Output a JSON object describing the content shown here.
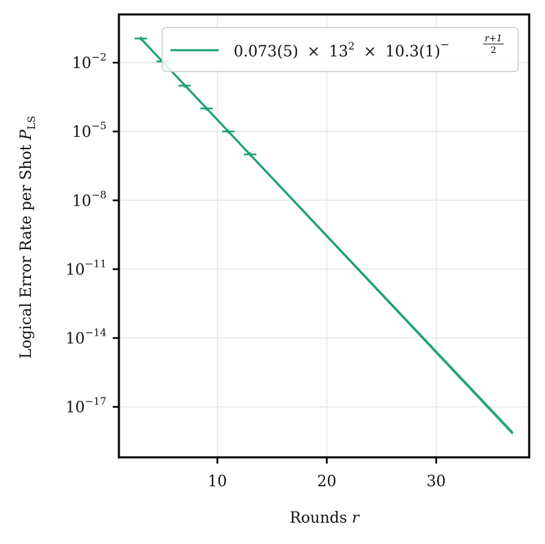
{
  "chart_data": {
    "type": "line",
    "xlabel": "Rounds",
    "xlabel_var": "r",
    "ylabel": "Logical Error Rate per Shot",
    "ylabel_var": "P",
    "ylabel_sub": "LS",
    "xlim": [
      1,
      38.5
    ],
    "ylim_log10": [
      -19.2,
      0.1
    ],
    "y_scale": "log",
    "x_ticks": [
      10,
      20,
      30
    ],
    "y_ticks_exp": [
      -2,
      -5,
      -8,
      -11,
      -14,
      -17
    ],
    "y_tick_base": "10",
    "y_tick_minus": "−",
    "grid": true,
    "legend_placement": "top-right",
    "color": "#1b9e77",
    "legend": {
      "coef": "0.073(5)",
      "times": "×",
      "base": "13",
      "base_exp": "2",
      "rate": "10.3(1)",
      "exp_sign": "−",
      "exp_num": "r+1",
      "exp_den": "2"
    },
    "fit": {
      "x": [
        3,
        37
      ],
      "log10_y": [
        -0.95,
        -18.15
      ]
    },
    "data_points": {
      "x": [
        3,
        5,
        7,
        9,
        11,
        13
      ],
      "log10_y": [
        -0.95,
        -1.95,
        -3.0,
        -4.0,
        -5.0,
        -6.0
      ]
    }
  }
}
